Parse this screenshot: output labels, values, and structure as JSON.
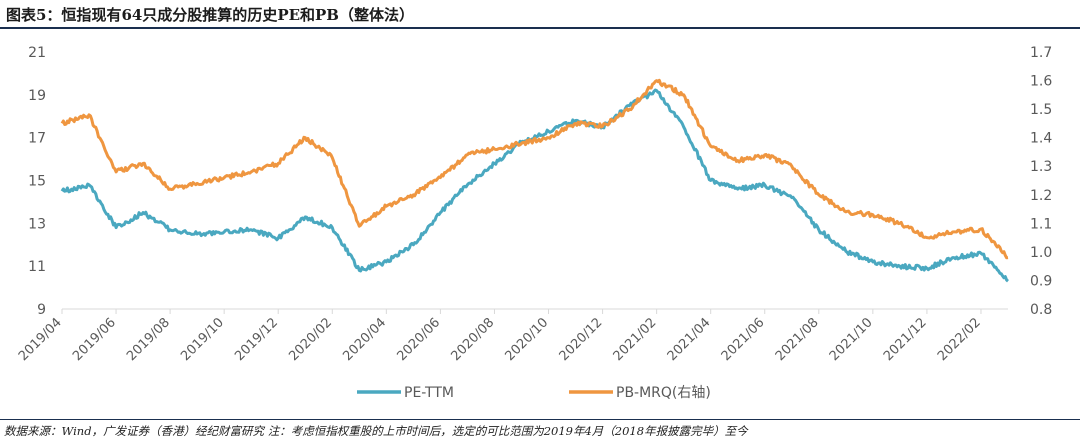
{
  "title": "图表5：恒指现有64只成分股推算的历史PE和PB（整体法）",
  "source": "数据来源：Wind，广发证券（香港）经纪财富研究  注：考虑恒指权重股的上市时间后，选定的可比范围为2019年4月（2018年报披露完毕）至今",
  "colors": {
    "pe": "#4aa8c0",
    "pb": "#ef9640",
    "axis": "#d9d9d9",
    "tick_text": "#595959",
    "title_rule": "#1a2f4f"
  },
  "chart_data": {
    "type": "line",
    "x_ticks": [
      "2019/04",
      "2019/06",
      "2019/08",
      "2019/10",
      "2019/12",
      "2020/02",
      "2020/04",
      "2020/06",
      "2020/08",
      "2020/10",
      "2020/12",
      "2021/02",
      "2021/04",
      "2021/06",
      "2021/08",
      "2021/10",
      "2021/12",
      "2022/02"
    ],
    "x_range": [
      "2019/04",
      "2022/03"
    ],
    "y_left": {
      "ticks": [
        "21",
        "19",
        "17",
        "15",
        "13",
        "11",
        "9"
      ],
      "min": 9,
      "max": 21
    },
    "y_right": {
      "ticks": [
        "1.7",
        "1.6",
        "1.5",
        "1.4",
        "1.3",
        "1.2",
        "1.1",
        "1.0",
        "0.9",
        "0.8"
      ],
      "min": 0.8,
      "max": 1.7
    },
    "grid": false,
    "legend_position": "bottom",
    "series": [
      {
        "name": "PE-TTM",
        "axis": "left",
        "x": [
          "2019/04",
          "2019/05",
          "2019/06",
          "2019/07",
          "2019/08",
          "2019/09",
          "2019/10",
          "2019/11",
          "2019/12",
          "2020/01",
          "2020/02",
          "2020/03",
          "2020/04",
          "2020/05",
          "2020/06",
          "2020/07",
          "2020/08",
          "2020/09",
          "2020/10",
          "2020/11",
          "2020/12",
          "2021/01",
          "2021/02",
          "2021/03",
          "2021/04",
          "2021/05",
          "2021/06",
          "2021/07",
          "2021/08",
          "2021/09",
          "2021/10",
          "2021/11",
          "2021/12",
          "2022/01",
          "2022/02",
          "2022/03"
        ],
        "values": [
          14.5,
          14.8,
          12.8,
          13.5,
          12.7,
          12.5,
          12.6,
          12.7,
          12.3,
          13.3,
          12.8,
          10.8,
          11.2,
          12.0,
          13.5,
          14.8,
          15.8,
          16.8,
          17.3,
          17.8,
          17.5,
          18.5,
          19.2,
          17.5,
          15.0,
          14.6,
          14.8,
          14.2,
          12.7,
          11.7,
          11.2,
          11.0,
          10.9,
          11.4,
          11.6,
          10.3
        ]
      },
      {
        "name": "PB-MRQ(右轴)",
        "axis": "right",
        "x": [
          "2019/04",
          "2019/05",
          "2019/06",
          "2019/07",
          "2019/08",
          "2019/09",
          "2019/10",
          "2019/11",
          "2019/12",
          "2020/01",
          "2020/02",
          "2020/03",
          "2020/04",
          "2020/05",
          "2020/06",
          "2020/07",
          "2020/08",
          "2020/09",
          "2020/10",
          "2020/11",
          "2020/12",
          "2021/01",
          "2021/02",
          "2021/03",
          "2021/04",
          "2021/05",
          "2021/06",
          "2021/07",
          "2021/08",
          "2021/09",
          "2021/10",
          "2021/11",
          "2021/12",
          "2022/01",
          "2022/02",
          "2022/03"
        ],
        "values": [
          1.45,
          1.48,
          1.28,
          1.31,
          1.22,
          1.24,
          1.26,
          1.28,
          1.31,
          1.4,
          1.33,
          1.09,
          1.16,
          1.2,
          1.26,
          1.34,
          1.36,
          1.38,
          1.4,
          1.45,
          1.44,
          1.5,
          1.6,
          1.55,
          1.37,
          1.32,
          1.34,
          1.3,
          1.2,
          1.14,
          1.13,
          1.1,
          1.05,
          1.07,
          1.08,
          0.98
        ]
      }
    ]
  }
}
